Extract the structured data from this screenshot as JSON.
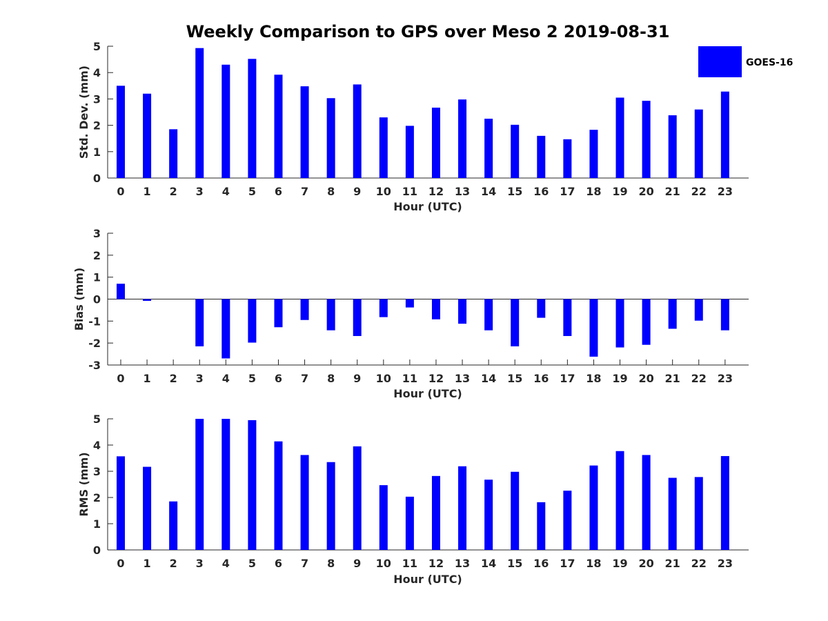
{
  "title": "Weekly Comparison to GPS over Meso 2 2019-08-31",
  "legend": {
    "label": "GOES-16",
    "color": "#0000ff"
  },
  "chart_data": [
    {
      "type": "bar",
      "title": "Weekly Comparison to GPS over Meso 2 2019-08-31",
      "xlabel": "Hour (UTC)",
      "ylabel": "Std. Dev. (mm)",
      "ylim": [
        0,
        5
      ],
      "yticks": [
        0,
        1,
        2,
        3,
        4,
        5
      ],
      "categories": [
        "0",
        "1",
        "2",
        "3",
        "4",
        "5",
        "6",
        "7",
        "8",
        "9",
        "10",
        "11",
        "12",
        "13",
        "14",
        "15",
        "16",
        "17",
        "18",
        "19",
        "20",
        "21",
        "22",
        "23"
      ],
      "series": [
        {
          "name": "GOES-16",
          "color": "#0000ff",
          "values": [
            3.5,
            3.2,
            1.85,
            4.93,
            4.3,
            4.52,
            3.92,
            3.48,
            3.03,
            3.55,
            2.3,
            1.98,
            2.67,
            2.98,
            2.25,
            2.02,
            1.6,
            1.47,
            1.83,
            3.05,
            2.93,
            2.38,
            2.6,
            3.28
          ]
        }
      ],
      "legend": {
        "entries": [
          "GOES-16"
        ],
        "position": "top-right-outside"
      }
    },
    {
      "type": "bar",
      "xlabel": "Hour (UTC)",
      "ylabel": "Bias (mm)",
      "ylim": [
        -3,
        3
      ],
      "yticks": [
        -3,
        -2,
        -1,
        0,
        1,
        2,
        3
      ],
      "categories": [
        "0",
        "1",
        "2",
        "3",
        "4",
        "5",
        "6",
        "7",
        "8",
        "9",
        "10",
        "11",
        "12",
        "13",
        "14",
        "15",
        "16",
        "17",
        "18",
        "19",
        "20",
        "21",
        "22",
        "23"
      ],
      "series": [
        {
          "name": "GOES-16",
          "color": "#0000ff",
          "values": [
            0.7,
            -0.08,
            0.0,
            -2.15,
            -2.7,
            -1.98,
            -1.28,
            -0.95,
            -1.42,
            -1.68,
            -0.82,
            -0.38,
            -0.92,
            -1.12,
            -1.42,
            -2.15,
            -0.85,
            -1.68,
            -2.62,
            -2.2,
            -2.08,
            -1.35,
            -0.98,
            -1.42
          ]
        }
      ]
    },
    {
      "type": "bar",
      "xlabel": "Hour (UTC)",
      "ylabel": "RMS (mm)",
      "ylim": [
        0,
        5
      ],
      "yticks": [
        0,
        1,
        2,
        3,
        4,
        5
      ],
      "categories": [
        "0",
        "1",
        "2",
        "3",
        "4",
        "5",
        "6",
        "7",
        "8",
        "9",
        "10",
        "11",
        "12",
        "13",
        "14",
        "15",
        "16",
        "17",
        "18",
        "19",
        "20",
        "21",
        "22",
        "23"
      ],
      "series": [
        {
          "name": "GOES-16",
          "color": "#0000ff",
          "values": [
            3.57,
            3.17,
            1.85,
            5.0,
            5.0,
            4.95,
            4.14,
            3.62,
            3.35,
            3.95,
            2.47,
            2.03,
            2.82,
            3.19,
            2.68,
            2.98,
            1.82,
            2.26,
            3.22,
            3.77,
            3.62,
            2.75,
            2.78,
            3.58
          ]
        }
      ]
    }
  ]
}
